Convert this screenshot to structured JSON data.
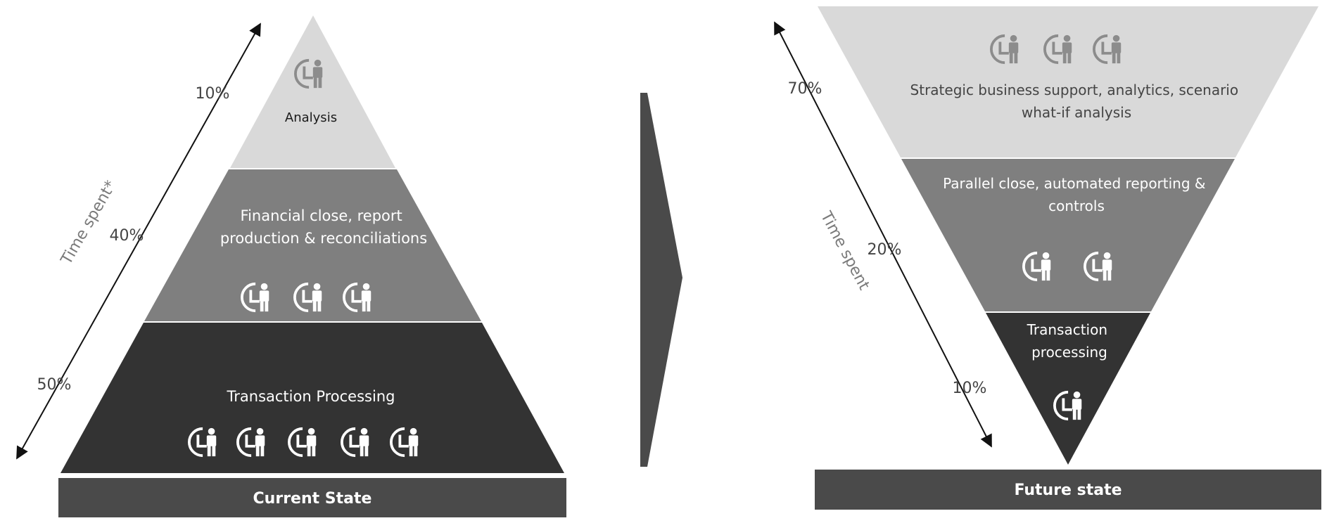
{
  "colors": {
    "light": "#d9d9d9",
    "mid": "#7f7f7f",
    "dark": "#333333",
    "banner": "#4a4a4a",
    "chevron": "#4a4a4a",
    "icon_gray": "#8c8c8c",
    "icon_white": "#ffffff",
    "text_white": "#ffffff",
    "text_dark": "#1a1a1a",
    "text_gray": "#444444",
    "axis_text": "#7a7a7a"
  },
  "current": {
    "tiers": {
      "analysis": {
        "lines": [
          "Analysis"
        ],
        "percent": "10%",
        "icon_count": 1
      },
      "financial": {
        "lines": [
          "Financial close, report",
          "production &  reconciliations"
        ],
        "percent": "40%",
        "icon_count": 3
      },
      "transaction": {
        "lines": [
          "Transaction Processing"
        ],
        "percent": "50%",
        "icon_count": 5
      }
    },
    "axis_label": "Time spent*",
    "banner": "Current State"
  },
  "future": {
    "tiers": {
      "strategic": {
        "lines": [
          "Strategic business support, analytics, scenario",
          "what-if analysis"
        ],
        "percent": "70%",
        "icon_count": 3
      },
      "parallel": {
        "lines": [
          "Parallel close, automated reporting &",
          "controls"
        ],
        "percent": "20%",
        "icon_count": 2
      },
      "transaction": {
        "lines": [
          "Transaction",
          "processing"
        ],
        "percent": "10%",
        "icon_count": 1
      }
    },
    "axis_label": "Time spent",
    "banner": "Future state"
  }
}
